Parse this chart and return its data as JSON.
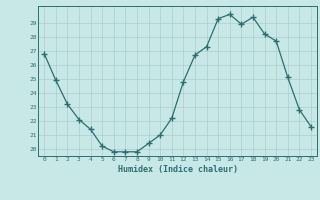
{
  "x": [
    0,
    1,
    2,
    3,
    4,
    5,
    6,
    7,
    8,
    9,
    10,
    11,
    12,
    13,
    14,
    15,
    16,
    17,
    18,
    19,
    20,
    21,
    22,
    23
  ],
  "y": [
    26.8,
    24.9,
    23.2,
    22.1,
    21.4,
    20.2,
    19.8,
    19.8,
    19.8,
    20.4,
    21.0,
    22.2,
    24.8,
    26.7,
    27.3,
    29.3,
    29.6,
    28.9,
    29.4,
    28.2,
    27.7,
    25.1,
    22.8,
    21.6
  ],
  "xlabel": "Humidex (Indice chaleur)",
  "ylim": [
    19.5,
    30.2
  ],
  "yticks": [
    20,
    21,
    22,
    23,
    24,
    25,
    26,
    27,
    28,
    29
  ],
  "xticks": [
    0,
    1,
    2,
    3,
    4,
    5,
    6,
    7,
    8,
    9,
    10,
    11,
    12,
    13,
    14,
    15,
    16,
    17,
    18,
    19,
    20,
    21,
    22,
    23
  ],
  "line_color": "#2d6e6e",
  "marker": "+",
  "bg_color": "#c8e8e8",
  "grid_color": "#aacece",
  "tick_color": "#2d6e6e",
  "label_color": "#2d6e6e",
  "font": "monospace"
}
